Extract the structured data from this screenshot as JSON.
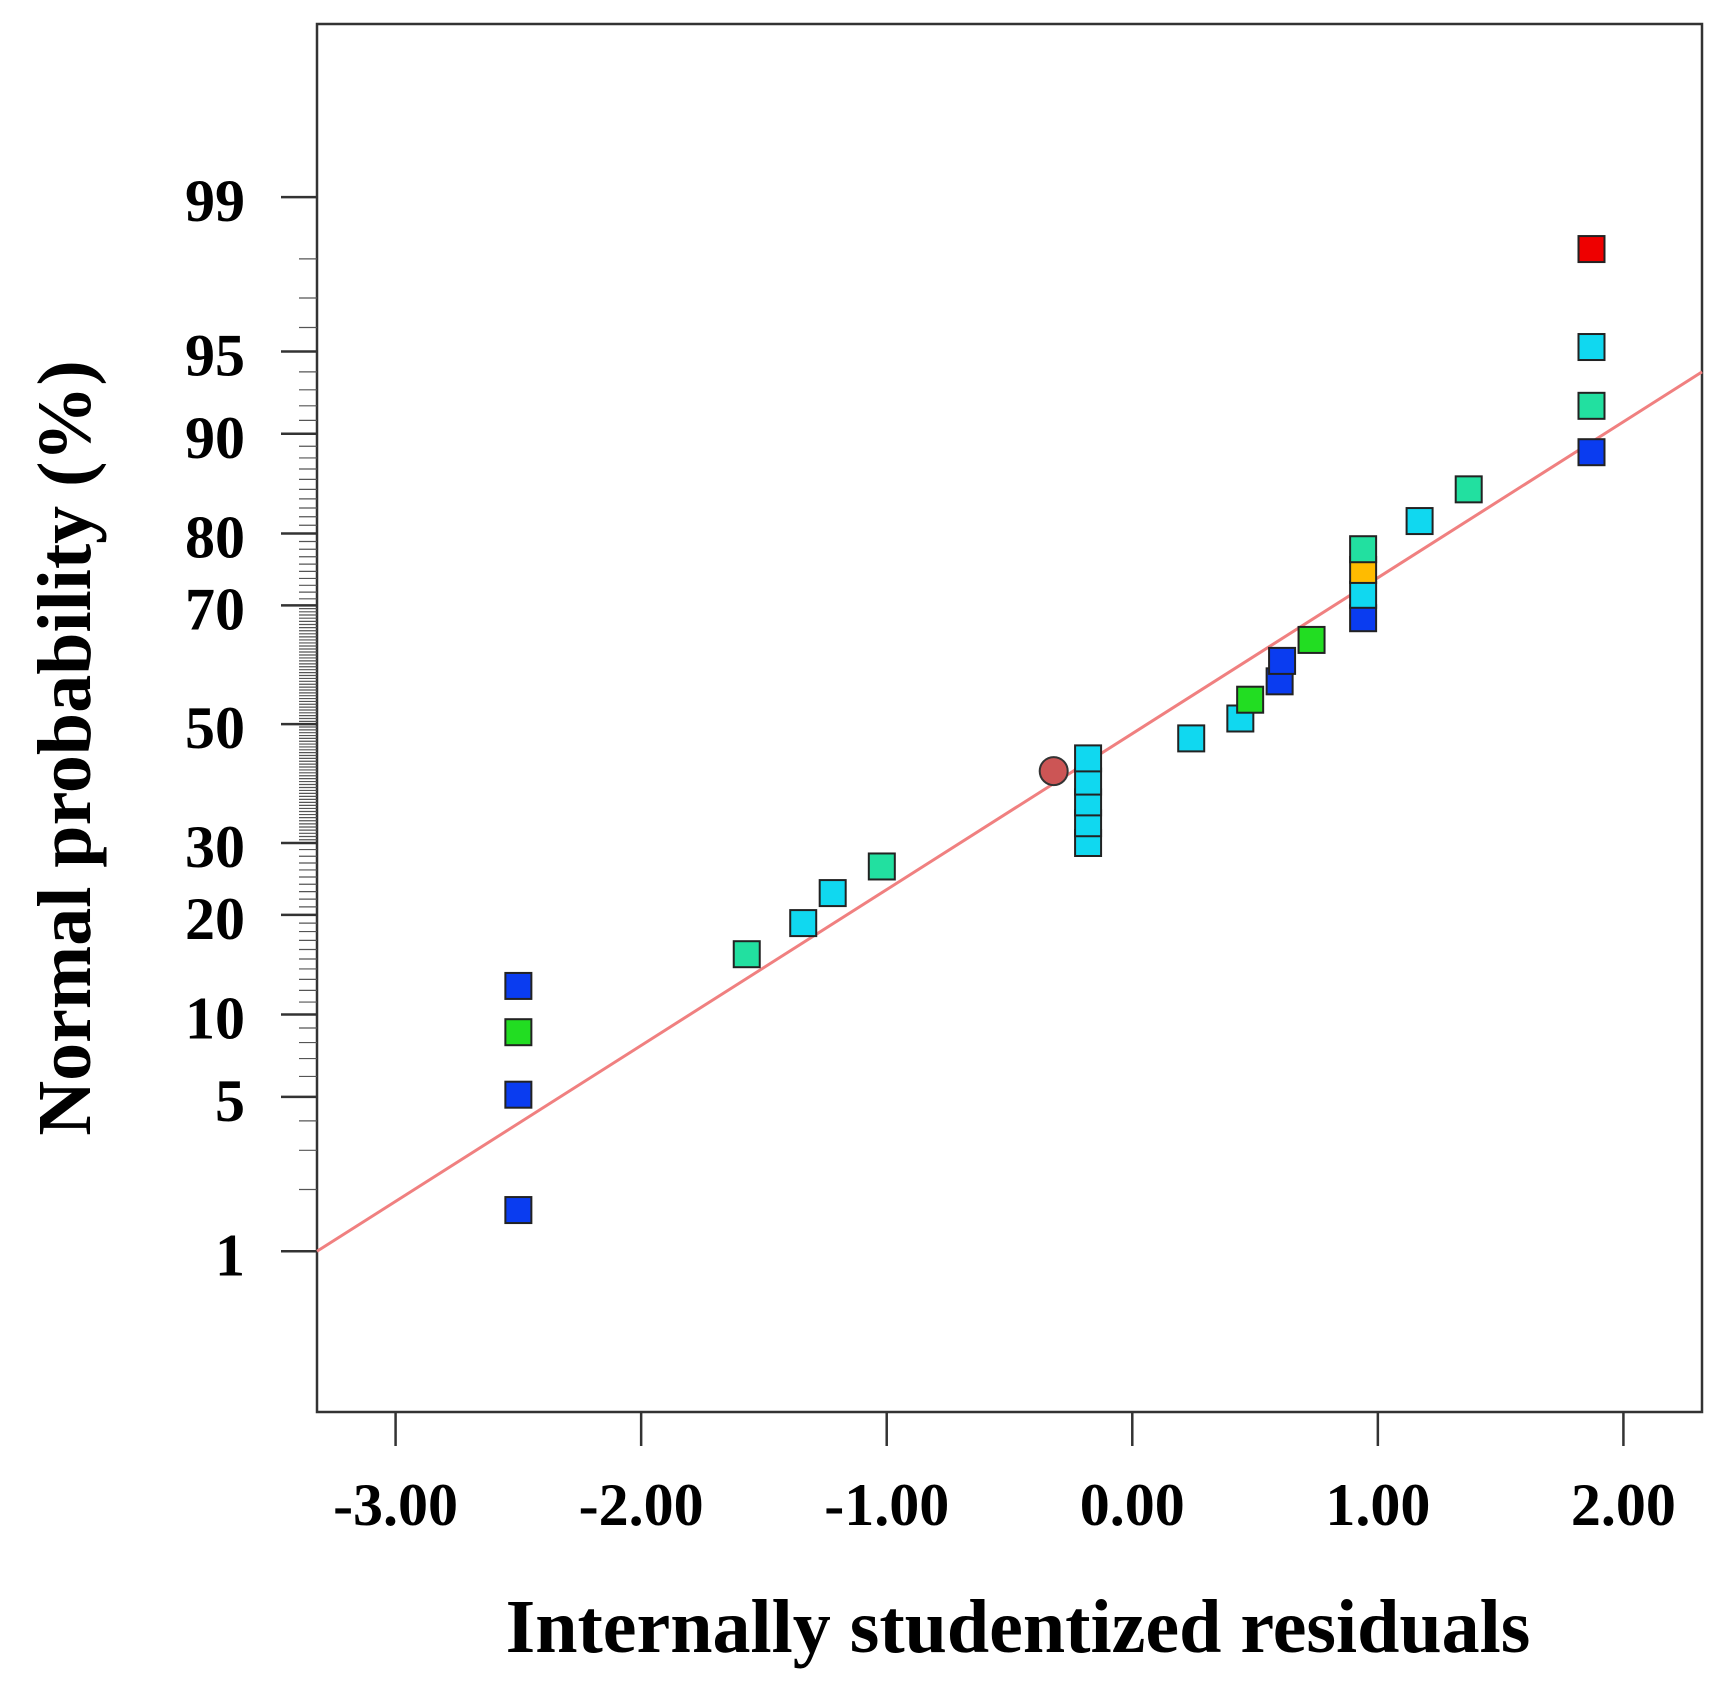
{
  "chart_data": {
    "type": "scatter",
    "title": "",
    "xlabel": "Internally studentized residuals",
    "ylabel": "Normal probability (%)",
    "xlim": [
      -3.32,
      2.32
    ],
    "ylim_probability_percent": [
      0.12,
      99.9
    ],
    "y_scale": "normal-probability",
    "grid": false,
    "x_ticks": [
      {
        "value": -3,
        "label": "-3.00"
      },
      {
        "value": -2,
        "label": "-2.00"
      },
      {
        "value": -1,
        "label": "-1.00"
      },
      {
        "value": 0,
        "label": "0.00"
      },
      {
        "value": 1,
        "label": "1.00"
      },
      {
        "value": 2,
        "label": "2.00"
      }
    ],
    "y_ticks": [
      {
        "value": 1,
        "label": "1"
      },
      {
        "value": 5,
        "label": "5"
      },
      {
        "value": 10,
        "label": "10"
      },
      {
        "value": 20,
        "label": "20"
      },
      {
        "value": 30,
        "label": "30"
      },
      {
        "value": 50,
        "label": "50"
      },
      {
        "value": 70,
        "label": "70"
      },
      {
        "value": 80,
        "label": "80"
      },
      {
        "value": 90,
        "label": "90"
      },
      {
        "value": 95,
        "label": "95"
      },
      {
        "value": 99,
        "label": "99"
      }
    ],
    "fit_line": {
      "color": "#f08080",
      "points": [
        {
          "x": -3.32,
          "p": 1.0
        },
        {
          "x": 2.32,
          "p": 94.0
        }
      ]
    },
    "points": [
      {
        "x": -2.5,
        "p": 1.6,
        "shape": "square",
        "color": "#0a3cf0"
      },
      {
        "x": -2.5,
        "p": 5.1,
        "shape": "square",
        "color": "#0a3cf0"
      },
      {
        "x": -2.5,
        "p": 8.7,
        "shape": "square",
        "color": "#22dd22"
      },
      {
        "x": -2.5,
        "p": 12.4,
        "shape": "square",
        "color": "#0a3cf0"
      },
      {
        "x": -1.57,
        "p": 15.5,
        "shape": "square",
        "color": "#22e0a0"
      },
      {
        "x": -1.34,
        "p": 19.0,
        "shape": "square",
        "color": "#10d8f0"
      },
      {
        "x": -1.22,
        "p": 22.8,
        "shape": "square",
        "color": "#10d8f0"
      },
      {
        "x": -1.02,
        "p": 26.5,
        "shape": "square",
        "color": "#22e0a0"
      },
      {
        "x": -0.18,
        "p": 30.0,
        "shape": "square",
        "color": "#10d8f0"
      },
      {
        "x": -0.18,
        "p": 33.1,
        "shape": "square",
        "color": "#10d8f0"
      },
      {
        "x": -0.18,
        "p": 36.5,
        "shape": "square",
        "color": "#10d8f0"
      },
      {
        "x": -0.18,
        "p": 40.0,
        "shape": "square",
        "color": "#10d8f0"
      },
      {
        "x": -0.18,
        "p": 44.0,
        "shape": "square",
        "color": "#10d8f0"
      },
      {
        "x": -0.32,
        "p": 41.8,
        "shape": "circle",
        "color": "#cc5555"
      },
      {
        "x": 0.24,
        "p": 47.5,
        "shape": "square",
        "color": "#10d8f0"
      },
      {
        "x": 0.44,
        "p": 51.0,
        "shape": "square",
        "color": "#10d8f0"
      },
      {
        "x": 0.48,
        "p": 54.3,
        "shape": "square",
        "color": "#22dd22"
      },
      {
        "x": 0.6,
        "p": 57.5,
        "shape": "square",
        "color": "#0a3cf0"
      },
      {
        "x": 0.61,
        "p": 61.0,
        "shape": "square",
        "color": "#0a3cf0"
      },
      {
        "x": 0.73,
        "p": 64.5,
        "shape": "square",
        "color": "#22dd22"
      },
      {
        "x": 0.94,
        "p": 68.0,
        "shape": "square",
        "color": "#0a3cf0"
      },
      {
        "x": 0.94,
        "p": 71.6,
        "shape": "square",
        "color": "#10d8f0"
      },
      {
        "x": 0.94,
        "p": 75.2,
        "shape": "square",
        "color": "#ffbb00"
      },
      {
        "x": 0.94,
        "p": 78.0,
        "shape": "square",
        "color": "#22e0a0"
      },
      {
        "x": 1.17,
        "p": 81.5,
        "shape": "square",
        "color": "#10d8f0"
      },
      {
        "x": 1.37,
        "p": 85.0,
        "shape": "square",
        "color": "#22e0a0"
      },
      {
        "x": 1.87,
        "p": 88.5,
        "shape": "square",
        "color": "#0a3cf0"
      },
      {
        "x": 1.87,
        "p": 92.0,
        "shape": "square",
        "color": "#22e0a0"
      },
      {
        "x": 1.87,
        "p": 95.2,
        "shape": "square",
        "color": "#10d8f0"
      },
      {
        "x": 1.87,
        "p": 98.2,
        "shape": "square",
        "color": "#ee0000"
      }
    ]
  }
}
